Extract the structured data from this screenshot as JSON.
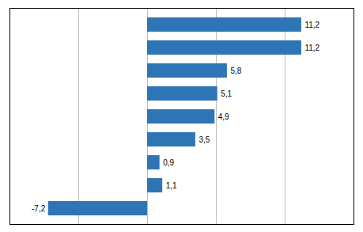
{
  "chart_data": {
    "type": "bar",
    "orientation": "horizontal",
    "categories": [
      null,
      null,
      null,
      null,
      null,
      null,
      null,
      null,
      null
    ],
    "values": [
      11.2,
      11.2,
      5.8,
      5.1,
      4.9,
      3.5,
      0.9,
      1.1,
      -7.2
    ],
    "value_labels": [
      "11,2",
      "11,2",
      "5,8",
      "5,1",
      "4,9",
      "3,5",
      "0,9",
      "1,1",
      "-7,2"
    ],
    "data_labels": true,
    "color": "#2E75B6",
    "xlim": [
      -10,
      15
    ],
    "xticks": [
      -10,
      -5,
      0,
      5,
      10,
      15
    ],
    "grid": true,
    "tick_labels": false
  }
}
